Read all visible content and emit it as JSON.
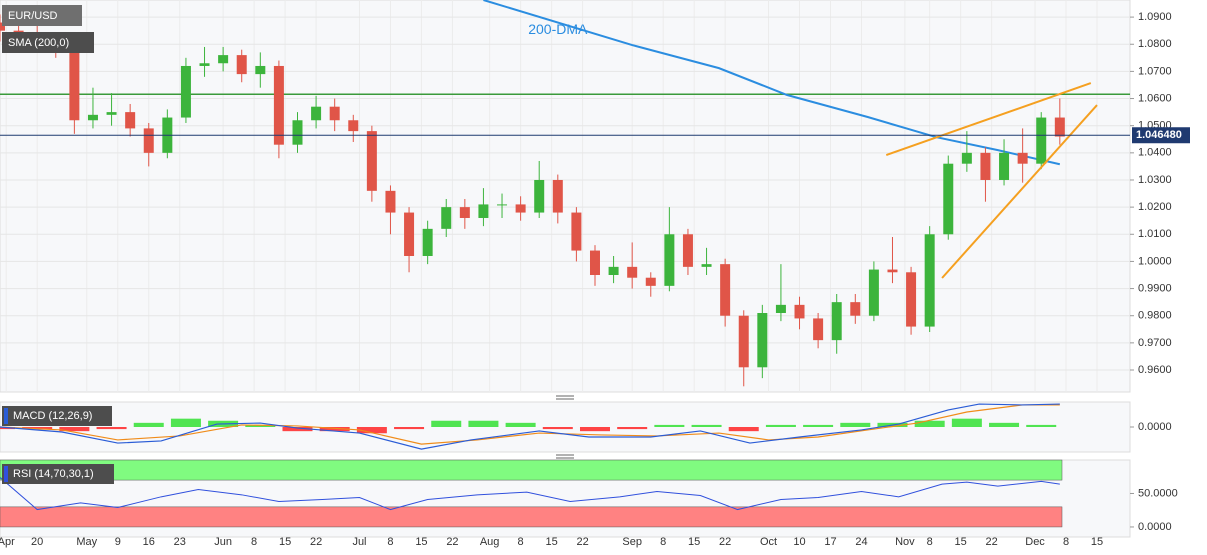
{
  "chart_data": [
    {
      "type": "candlestick",
      "name": "EUR/USD",
      "xlim": [
        0,
        182
      ],
      "xticks": [
        {
          "value": 1,
          "label": "Apr"
        },
        {
          "value": 6,
          "label": "20"
        },
        {
          "value": 14,
          "label": "May"
        },
        {
          "value": 19,
          "label": "9"
        },
        {
          "value": 24,
          "label": "16"
        },
        {
          "value": 29,
          "label": "23"
        },
        {
          "value": 36,
          "label": "Jun"
        },
        {
          "value": 41,
          "label": "8"
        },
        {
          "value": 46,
          "label": "15"
        },
        {
          "value": 51,
          "label": "22"
        },
        {
          "value": 58,
          "label": "Jul"
        },
        {
          "value": 63,
          "label": "8"
        },
        {
          "value": 68,
          "label": "15"
        },
        {
          "value": 73,
          "label": "22"
        },
        {
          "value": 79,
          "label": "Aug"
        },
        {
          "value": 84,
          "label": "8"
        },
        {
          "value": 89,
          "label": "15"
        },
        {
          "value": 94,
          "label": "22"
        },
        {
          "value": 102,
          "label": "Sep"
        },
        {
          "value": 107,
          "label": "8"
        },
        {
          "value": 112,
          "label": "15"
        },
        {
          "value": 117,
          "label": "22"
        },
        {
          "value": 124,
          "label": "Oct"
        },
        {
          "value": 129,
          "label": "10"
        },
        {
          "value": 134,
          "label": "17"
        },
        {
          "value": 139,
          "label": "24"
        },
        {
          "value": 146,
          "label": "Nov"
        },
        {
          "value": 150,
          "label": "8"
        },
        {
          "value": 155,
          "label": "15"
        },
        {
          "value": 160,
          "label": "22"
        },
        {
          "value": 167,
          "label": "Dec"
        },
        {
          "value": 172,
          "label": "8"
        },
        {
          "value": 177,
          "label": "15"
        }
      ],
      "ylim": [
        0.9519,
        1.0963
      ],
      "yticks": [
        {
          "value": 1.09,
          "label": "1.0900"
        },
        {
          "value": 1.08,
          "label": "1.0800"
        },
        {
          "value": 1.07,
          "label": "1.0700"
        },
        {
          "value": 1.06,
          "label": "1.0600"
        },
        {
          "value": 1.05,
          "label": "1.0500"
        },
        {
          "value": 1.04,
          "label": "1.0400"
        },
        {
          "value": 1.03,
          "label": "1.0300"
        },
        {
          "value": 1.02,
          "label": "1.0200"
        },
        {
          "value": 1.01,
          "label": "1.0100"
        },
        {
          "value": 1.0,
          "label": "1.0000"
        },
        {
          "value": 0.99,
          "label": "0.9900"
        },
        {
          "value": 0.98,
          "label": "0.9800"
        },
        {
          "value": 0.97,
          "label": "0.9700"
        },
        {
          "value": 0.96,
          "label": "0.9600"
        }
      ],
      "grid": true,
      "up_color": "#3cb43c",
      "down_color": "#e05548",
      "x": [
        0,
        3,
        6,
        9,
        12,
        15,
        18,
        21,
        24,
        27,
        30,
        33,
        36,
        39,
        42,
        45,
        48,
        51,
        54,
        57,
        60,
        63,
        66,
        69,
        72,
        75,
        78,
        81,
        84,
        87,
        90,
        93,
        96,
        99,
        102,
        105,
        108,
        111,
        114,
        117,
        120,
        123,
        126,
        129,
        132,
        135,
        138,
        141,
        144,
        147,
        150,
        153,
        156,
        159,
        162,
        165,
        168,
        171
      ],
      "open": [
        1.088,
        1.085,
        1.084,
        1.082,
        1.08,
        1.052,
        1.054,
        1.055,
        1.049,
        1.04,
        1.053,
        1.072,
        1.073,
        1.076,
        1.069,
        1.072,
        1.043,
        1.052,
        1.057,
        1.052,
        1.048,
        1.026,
        1.018,
        1.002,
        1.012,
        1.02,
        1.016,
        1.021,
        1.021,
        1.018,
        1.03,
        1.018,
        1.004,
        0.995,
        0.998,
        0.994,
        0.991,
        1.01,
        0.998,
        0.999,
        0.98,
        0.961,
        0.981,
        0.984,
        0.979,
        0.971,
        0.985,
        0.98,
        0.997,
        0.996,
        0.976,
        1.01,
        1.036,
        1.04,
        1.03,
        1.04,
        1.036,
        1.053
      ],
      "high": [
        1.091,
        1.088,
        1.087,
        1.084,
        1.082,
        1.064,
        1.062,
        1.058,
        1.051,
        1.056,
        1.075,
        1.079,
        1.079,
        1.078,
        1.077,
        1.074,
        1.055,
        1.061,
        1.06,
        1.054,
        1.05,
        1.028,
        1.02,
        1.015,
        1.023,
        1.023,
        1.027,
        1.025,
        1.024,
        1.037,
        1.032,
        1.02,
        1.006,
        1.002,
        1.007,
        0.996,
        1.02,
        1.012,
        1.005,
        1.001,
        0.982,
        0.984,
        0.999,
        0.987,
        0.981,
        0.988,
        0.988,
        1.0,
        1.009,
        0.998,
        1.013,
        1.039,
        1.048,
        1.042,
        1.045,
        1.049,
        1.055,
        1.06
      ],
      "low": [
        1.081,
        1.079,
        1.078,
        1.075,
        1.047,
        1.049,
        1.05,
        1.046,
        1.035,
        1.038,
        1.051,
        1.068,
        1.07,
        1.066,
        1.064,
        1.038,
        1.04,
        1.049,
        1.048,
        1.044,
        1.022,
        1.01,
        0.996,
        0.999,
        1.009,
        1.012,
        1.013,
        1.016,
        1.015,
        1.016,
        1.014,
        1.0,
        0.991,
        0.992,
        0.99,
        0.987,
        0.989,
        0.995,
        0.995,
        0.976,
        0.954,
        0.957,
        0.978,
        0.975,
        0.968,
        0.966,
        0.977,
        0.978,
        0.992,
        0.973,
        0.974,
        1.008,
        1.033,
        1.022,
        1.028,
        1.029,
        1.034,
        1.043
      ],
      "close": [
        1.085,
        1.084,
        1.082,
        1.08,
        1.052,
        1.054,
        1.055,
        1.049,
        1.04,
        1.053,
        1.072,
        1.073,
        1.076,
        1.069,
        1.072,
        1.043,
        1.052,
        1.057,
        1.052,
        1.048,
        1.026,
        1.018,
        1.002,
        1.012,
        1.02,
        1.016,
        1.021,
        1.021,
        1.018,
        1.03,
        1.018,
        1.004,
        0.995,
        0.998,
        0.994,
        0.991,
        1.01,
        0.998,
        0.999,
        0.98,
        0.961,
        0.981,
        0.984,
        0.979,
        0.971,
        0.985,
        0.98,
        0.997,
        0.996,
        0.976,
        1.01,
        1.036,
        1.04,
        1.03,
        1.04,
        1.036,
        1.053,
        1.046
      ],
      "lines": [
        {
          "name": "SMA (200,0)",
          "color": "#2b8de0",
          "x": [
            78,
            102,
            116,
            127,
            140,
            151,
            161,
            171
          ],
          "values": [
            1.0963,
            1.0797,
            1.0712,
            1.0613,
            1.0532,
            1.0458,
            1.041,
            1.0358
          ]
        }
      ],
      "trendlines": [
        {
          "color": "#f5a020",
          "x": [
            143,
            176
          ],
          "values": [
            1.0392,
            1.0657
          ]
        },
        {
          "color": "#f5a020",
          "x": [
            152,
            177
          ],
          "values": [
            0.9939,
            1.0576
          ]
        }
      ],
      "hlines": [
        {
          "value": 1.0616,
          "color": "#3a9a3a"
        }
      ],
      "last_price": {
        "value": 1.04648,
        "label": "1.046480",
        "color": "#1f3a70"
      },
      "annotation": {
        "text": "200-DMA",
        "x": 90,
        "y": 1.0852,
        "color": "#2b8de0"
      }
    },
    {
      "type": "macd",
      "name": "MACD (12,26,9)",
      "ylim": [
        -0.012,
        0.012
      ],
      "yticks": [
        {
          "value": 0,
          "label": "0.0000"
        }
      ],
      "macd": {
        "color": "#2a5cd6",
        "x": [
          0,
          10,
          19,
          26,
          35,
          42,
          48,
          58,
          68,
          76,
          87,
          95,
          105,
          113,
          121,
          129,
          139,
          145,
          153,
          158,
          165,
          171
        ],
        "values": [
          0,
          -0.0024,
          -0.0077,
          -0.0067,
          0.0014,
          0.0019,
          -0.0005,
          -0.0029,
          -0.0106,
          -0.0062,
          -0.0019,
          -0.0048,
          -0.0048,
          -0.0019,
          -0.0077,
          -0.0048,
          -0.0014,
          0.0014,
          0.0082,
          0.011,
          0.0106,
          0.011
        ]
      },
      "signal": {
        "color": "#f08c1a",
        "x": [
          0,
          10,
          19,
          29,
          39,
          48,
          58,
          68,
          77,
          87,
          97,
          106,
          116,
          124,
          132,
          140,
          148,
          156,
          165,
          171
        ],
        "values": [
          0,
          -0.0014,
          -0.0062,
          -0.0043,
          0.001,
          0.0005,
          -0.0014,
          -0.0082,
          -0.0062,
          -0.0029,
          -0.0038,
          -0.0043,
          -0.0029,
          -0.0062,
          -0.0048,
          -0.0014,
          0.0019,
          0.0072,
          0.0106,
          0.0106
        ]
      },
      "hist_x": [
        0,
        6,
        12,
        18,
        24,
        30,
        36,
        42,
        48,
        54,
        60,
        66,
        72,
        78,
        84,
        90,
        96,
        102,
        108,
        114,
        120,
        126,
        132,
        138,
        144,
        150,
        156,
        162,
        168
      ],
      "hist": [
        -0.001,
        -0.001,
        -0.002,
        -0.001,
        0.002,
        0.004,
        0.003,
        0.001,
        -0.002,
        -0.002,
        -0.003,
        -0.001,
        0.003,
        0.003,
        0.002,
        -0.001,
        -0.002,
        -0.001,
        0.001,
        0.001,
        -0.002,
        0.001,
        0.001,
        0.002,
        0.002,
        0.003,
        0.004,
        0.002,
        0.001
      ],
      "hist_up_color": "#33e033",
      "hist_down_color": "#ff2424"
    },
    {
      "type": "rsi",
      "name": "RSI (14,70,30,1)",
      "ylim": [
        -15,
        100
      ],
      "yticks": [
        {
          "value": 50,
          "label": "50.0000"
        },
        {
          "value": 0,
          "label": "0.0000"
        }
      ],
      "bands": [
        {
          "from": 70,
          "to": 100,
          "color": "#80fb80"
        },
        {
          "from": 0,
          "to": 30,
          "color": "#ff8282"
        }
      ],
      "line": {
        "color": "#3050dd",
        "x": [
          0,
          6,
          13,
          19,
          26,
          32,
          39,
          45,
          52,
          58,
          63,
          69,
          77,
          85,
          92,
          100,
          106,
          113,
          119,
          126,
          132,
          139,
          145,
          152,
          156,
          161,
          168,
          171
        ],
        "values": [
          74,
          26,
          36,
          29,
          45,
          56,
          48,
          38,
          41,
          44,
          26,
          41,
          48,
          52,
          38,
          45,
          53,
          47,
          26,
          41,
          44,
          53,
          45,
          64,
          67,
          61,
          68,
          64
        ]
      }
    }
  ]
}
